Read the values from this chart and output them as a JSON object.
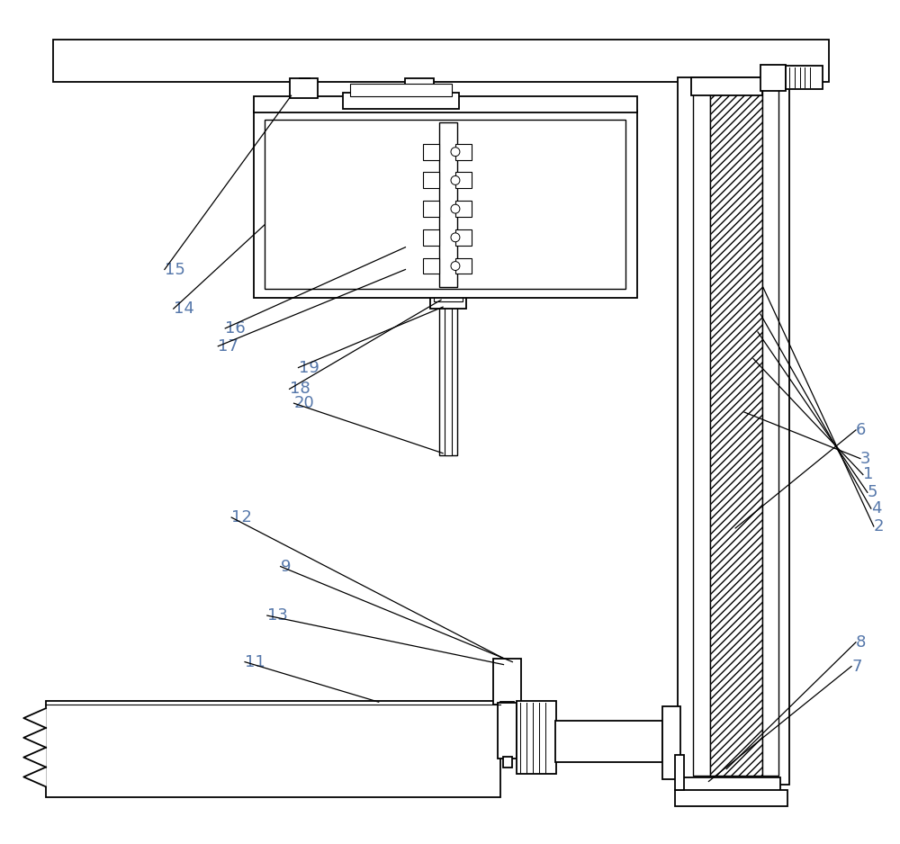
{
  "bg_color": "#ffffff",
  "line_color": "#000000",
  "fig_width": 10.0,
  "fig_height": 9.38,
  "lw": 1.3,
  "label_color": "#5577aa",
  "label_fontsize": 13
}
